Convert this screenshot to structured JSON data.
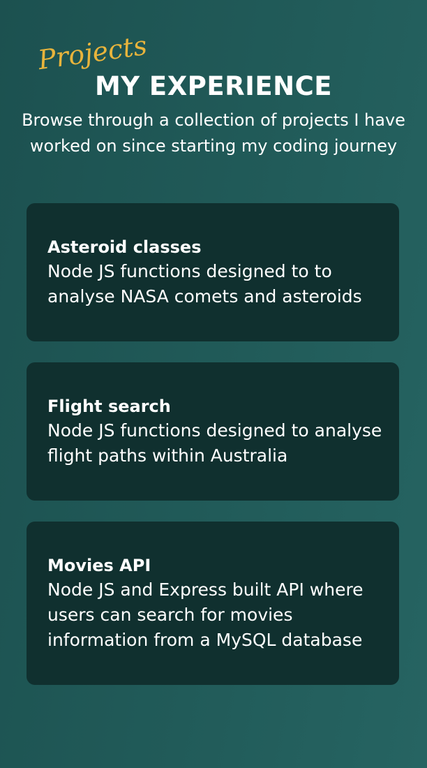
{
  "header": {
    "script_label": "Projects",
    "title": "MY EXPERIENCE",
    "subtitle": "Browse through a collection of projects I have worked on since starting my coding journey",
    "accent_color": "#e8b43c"
  },
  "projects": [
    {
      "title": "Asteroid classes",
      "description": "Node JS functions designed to to analyse NASA comets and asteroids"
    },
    {
      "title": "Flight search",
      "description": "Node JS functions designed to analyse flight paths within Australia"
    },
    {
      "title": "Movies API",
      "description": "Node JS and Express built API where users can search for movies information from a MySQL database"
    }
  ],
  "colors": {
    "background": "#215b59",
    "card": "#10302f",
    "text": "#ffffff"
  }
}
